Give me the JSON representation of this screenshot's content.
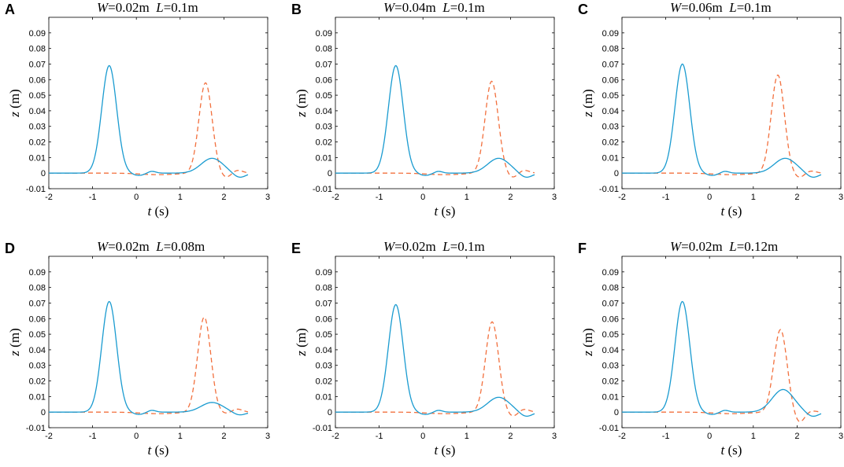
{
  "series_styles": [
    {
      "name": "solid",
      "color": "#1a9bd0",
      "dash": "none"
    },
    {
      "name": "dashed",
      "color": "#f2703e",
      "dash": "6,4"
    }
  ],
  "chart_data": [
    {
      "type": "line",
      "panel": "A",
      "title": {
        "w_label": "W",
        "w_value": "=0.02m",
        "l_label": "L",
        "l_value": "=0.1m"
      },
      "xlabel": {
        "var": "t",
        "unit": " (s)"
      },
      "ylabel": {
        "var": "z",
        "unit": " (m)"
      },
      "xlim": [
        -2,
        3
      ],
      "ylim": [
        -0.01,
        0.1
      ],
      "xticks": [
        "-2",
        "-1",
        "0",
        "1",
        "2",
        "3"
      ],
      "yticks": [
        "-0.01",
        "0",
        "0.01",
        "0.02",
        "0.03",
        "0.04",
        "0.05",
        "0.06",
        "0.07",
        "0.08",
        "0.09"
      ],
      "solid_params": {
        "a1": 0.069,
        "a2": 0.0095,
        "a3": -0.003,
        "sx": 0.0
      },
      "dashed_params": {
        "peak": 0.058,
        "mu": 1.58,
        "dip": -0.003,
        "bump": 0.002
      }
    },
    {
      "type": "line",
      "panel": "B",
      "title": {
        "w_label": "W",
        "w_value": "=0.04m",
        "l_label": "L",
        "l_value": "=0.1m"
      },
      "xlabel": {
        "var": "t",
        "unit": " (s)"
      },
      "ylabel": {
        "var": "z",
        "unit": " (m)"
      },
      "xlim": [
        -2,
        3
      ],
      "ylim": [
        -0.01,
        0.1
      ],
      "xticks": [
        "-2",
        "-1",
        "0",
        "1",
        "2",
        "3"
      ],
      "yticks": [
        "-0.01",
        "0",
        "0.01",
        "0.02",
        "0.03",
        "0.04",
        "0.05",
        "0.06",
        "0.07",
        "0.08",
        "0.09"
      ],
      "solid_params": {
        "a1": 0.069,
        "a2": 0.0095,
        "a3": -0.003,
        "sx": 0.0
      },
      "dashed_params": {
        "peak": 0.059,
        "mu": 1.57,
        "dip": -0.003,
        "bump": 0.002
      }
    },
    {
      "type": "line",
      "panel": "C",
      "title": {
        "w_label": "W",
        "w_value": "=0.06m",
        "l_label": "L",
        "l_value": "=0.1m"
      },
      "xlabel": {
        "var": "t",
        "unit": " (s)"
      },
      "ylabel": {
        "var": "z",
        "unit": " (m)"
      },
      "xlim": [
        -2,
        3
      ],
      "ylim": [
        -0.01,
        0.1
      ],
      "xticks": [
        "-2",
        "-1",
        "0",
        "1",
        "2",
        "3"
      ],
      "yticks": [
        "-0.01",
        "0",
        "0.01",
        "0.02",
        "0.03",
        "0.04",
        "0.05",
        "0.06",
        "0.07",
        "0.08",
        "0.09"
      ],
      "solid_params": {
        "a1": 0.07,
        "a2": 0.0095,
        "a3": -0.003,
        "sx": 0.0
      },
      "dashed_params": {
        "peak": 0.063,
        "mu": 1.56,
        "dip": -0.003,
        "bump": 0.0015
      }
    },
    {
      "type": "line",
      "panel": "D",
      "title": {
        "w_label": "W",
        "w_value": "=0.02m",
        "l_label": "L",
        "l_value": "=0.08m"
      },
      "xlabel": {
        "var": "t",
        "unit": " (s)"
      },
      "ylabel": {
        "var": "z",
        "unit": " (m)"
      },
      "xlim": [
        -2,
        3
      ],
      "ylim": [
        -0.01,
        0.1
      ],
      "xticks": [
        "-2",
        "-1",
        "0",
        "1",
        "2",
        "3"
      ],
      "yticks": [
        "-0.01",
        "0",
        "0.01",
        "0.02",
        "0.03",
        "0.04",
        "0.05",
        "0.06",
        "0.07",
        "0.08",
        "0.09"
      ],
      "solid_params": {
        "a1": 0.071,
        "a2": 0.0062,
        "a3": -0.002,
        "sx": 0.0
      },
      "dashed_params": {
        "peak": 0.061,
        "mu": 1.55,
        "dip": -0.001,
        "bump": 0.002
      }
    },
    {
      "type": "line",
      "panel": "E",
      "title": {
        "w_label": "W",
        "w_value": "=0.02m",
        "l_label": "L",
        "l_value": "=0.1m"
      },
      "xlabel": {
        "var": "t",
        "unit": " (s)"
      },
      "ylabel": {
        "var": "z",
        "unit": " (m)"
      },
      "xlim": [
        -2,
        3
      ],
      "ylim": [
        -0.01,
        0.1
      ],
      "xticks": [
        "-2",
        "-1",
        "0",
        "1",
        "2",
        "3"
      ],
      "yticks": [
        "-0.01",
        "0",
        "0.01",
        "0.02",
        "0.03",
        "0.04",
        "0.05",
        "0.06",
        "0.07",
        "0.08",
        "0.09"
      ],
      "solid_params": {
        "a1": 0.069,
        "a2": 0.0095,
        "a3": -0.003,
        "sx": 0.0
      },
      "dashed_params": {
        "peak": 0.058,
        "mu": 1.58,
        "dip": -0.003,
        "bump": 0.002
      }
    },
    {
      "type": "line",
      "panel": "F",
      "title": {
        "w_label": "W",
        "w_value": "=0.02m",
        "l_label": "L",
        "l_value": "=0.12m"
      },
      "xlabel": {
        "var": "t",
        "unit": " (s)"
      },
      "ylabel": {
        "var": "z",
        "unit": " (m)"
      },
      "xlim": [
        -2,
        3
      ],
      "ylim": [
        -0.01,
        0.1
      ],
      "xticks": [
        "-2",
        "-1",
        "0",
        "1",
        "2",
        "3"
      ],
      "yticks": [
        "-0.01",
        "0",
        "0.01",
        "0.02",
        "0.03",
        "0.04",
        "0.05",
        "0.06",
        "0.07",
        "0.08",
        "0.09"
      ],
      "solid_params": {
        "a1": 0.071,
        "a2": 0.0145,
        "a3": -0.003,
        "sx": -0.05
      },
      "dashed_params": {
        "peak": 0.053,
        "mu": 1.62,
        "dip": -0.007,
        "bump": 0.001
      }
    }
  ]
}
